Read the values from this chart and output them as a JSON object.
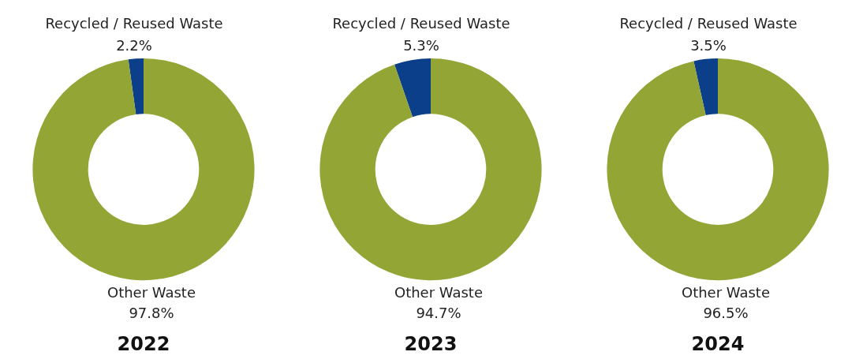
{
  "chart_data": [
    {
      "type": "donut",
      "title": "2022",
      "categories": [
        "Recycled / Reused Waste",
        "Other Waste"
      ],
      "values": [
        2.2,
        97.8
      ],
      "value_labels": [
        "2.2%",
        "97.8%"
      ],
      "colors": [
        "#0b3f8a",
        "#92a535"
      ],
      "legend": false
    },
    {
      "type": "donut",
      "title": "2023",
      "categories": [
        "Recycled / Reused Waste",
        "Other Waste"
      ],
      "values": [
        5.3,
        94.7
      ],
      "value_labels": [
        "5.3%",
        "94.7%"
      ],
      "colors": [
        "#0b3f8a",
        "#92a535"
      ],
      "legend": false
    },
    {
      "type": "donut",
      "title": "2024",
      "categories": [
        "Recycled / Reused Waste",
        "Other Waste"
      ],
      "values": [
        3.5,
        96.5
      ],
      "value_labels": [
        "3.5%",
        "96.5%"
      ],
      "colors": [
        "#0b3f8a",
        "#92a535"
      ],
      "legend": false
    }
  ]
}
